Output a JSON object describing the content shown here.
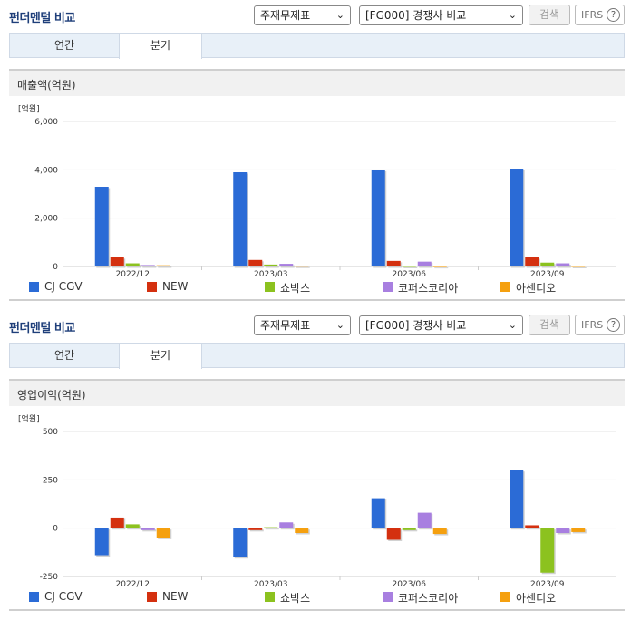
{
  "sections": [
    {
      "title": "펀더멘털 비교",
      "select_type": "주재무제표",
      "select_compare": "[FG000] 경쟁사 비교",
      "search_label": "검색",
      "ifrs_label": "IFRS",
      "help_label": "?",
      "tabs": [
        "연간",
        "분기"
      ],
      "metric": "매출액(억원)"
    },
    {
      "title": "펀더멘털 비교",
      "select_type": "주재무제표",
      "select_compare": "[FG000] 경쟁사 비교",
      "search_label": "검색",
      "ifrs_label": "IFRS",
      "help_label": "?",
      "tabs": [
        "연간",
        "분기"
      ],
      "metric": "영업이익(억원)"
    }
  ],
  "legend": [
    {
      "name": "CJ CGV",
      "color": "#2b6bd6"
    },
    {
      "name": "NEW",
      "color": "#d4300f"
    },
    {
      "name": "쇼박스",
      "color": "#8cc21f"
    },
    {
      "name": "코퍼스코리아",
      "color": "#a87fe0"
    },
    {
      "name": "아센디오",
      "color": "#f5a00f"
    }
  ],
  "chart_data": [
    {
      "type": "bar",
      "unit_label": "[억원]",
      "categories": [
        "2022/12",
        "2023/03",
        "2023/06",
        "2023/09"
      ],
      "yticks": [
        "6,000",
        "4,000",
        "2,000",
        "0"
      ],
      "ylim": [
        0,
        6000
      ],
      "series": [
        {
          "name": "CJ CGV",
          "values": [
            3300,
            3900,
            4000,
            4050
          ]
        },
        {
          "name": "NEW",
          "values": [
            380,
            270,
            230,
            380
          ]
        },
        {
          "name": "쇼박스",
          "values": [
            130,
            80,
            20,
            160
          ]
        },
        {
          "name": "코퍼스코리아",
          "values": [
            60,
            110,
            200,
            130
          ]
        },
        {
          "name": "아센디오",
          "values": [
            50,
            30,
            15,
            20
          ]
        }
      ]
    },
    {
      "type": "bar",
      "unit_label": "[억원]",
      "categories": [
        "2022/12",
        "2023/03",
        "2023/06",
        "2023/09"
      ],
      "yticks": [
        "500",
        "250",
        "0",
        "-250"
      ],
      "ylim": [
        -250,
        500
      ],
      "series": [
        {
          "name": "CJ CGV",
          "values": [
            -140,
            -150,
            155,
            300
          ]
        },
        {
          "name": "NEW",
          "values": [
            55,
            -10,
            -60,
            15
          ]
        },
        {
          "name": "쇼박스",
          "values": [
            20,
            5,
            -10,
            -230
          ]
        },
        {
          "name": "코퍼스코리아",
          "values": [
            -10,
            30,
            80,
            -25
          ]
        },
        {
          "name": "아센디오",
          "values": [
            -50,
            -25,
            -30,
            -20
          ]
        }
      ]
    }
  ]
}
